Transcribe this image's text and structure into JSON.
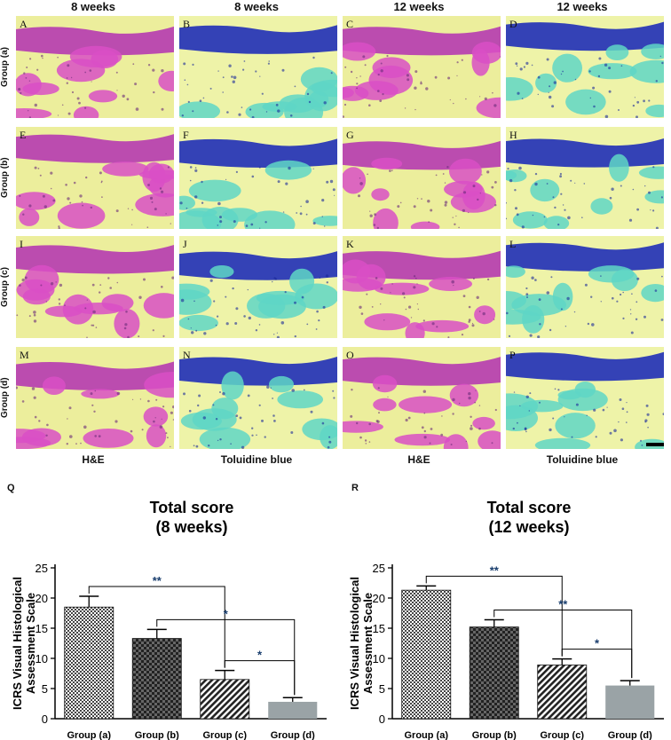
{
  "column_headers": [
    "8 weeks",
    "8 weeks",
    "12 weeks",
    "12 weeks"
  ],
  "row_labels": [
    "Group (a)",
    "Group (b)",
    "Group (c)",
    "Group (d)"
  ],
  "panel_letters": [
    "A",
    "B",
    "C",
    "D",
    "E",
    "F",
    "G",
    "H",
    "I",
    "J",
    "K",
    "L",
    "M",
    "N",
    "O",
    "P"
  ],
  "stain_labels": [
    "H&E",
    "Toluidine blue",
    "H&E",
    "Toluidine blue"
  ],
  "colors": {
    "he_bg": "#ecee9c",
    "he_tissue": "#d94fc6",
    "he_dark": "#b63ab1",
    "tb_bg": "#eef3a8",
    "tb_tissue": "#5fd6c6",
    "tb_dark": "#1f2fb7",
    "bar_a": "#d9d9d9",
    "bar_b": "#3a3a3a",
    "bar_c": "#3a3a3a",
    "bar_d": "#9aa3a6"
  },
  "chart_data": [
    {
      "type": "bar",
      "panel": "Q",
      "title": "Total score",
      "subtitle": "(8 weeks)",
      "ylabel": "ICRS Visual Histological Assessment Scale",
      "ylim": [
        0,
        25
      ],
      "yticks": [
        0,
        5,
        10,
        15,
        20,
        25
      ],
      "categories": [
        "Group (a)",
        "Group (b)",
        "Group (c)",
        "Group (d)"
      ],
      "values": [
        18.5,
        13.3,
        6.5,
        2.8
      ],
      "errors": [
        1.8,
        1.5,
        1.5,
        0.7
      ],
      "significance": [
        {
          "from": 0,
          "to": 2,
          "label": "**"
        },
        {
          "from": 1,
          "to": 3,
          "label": "*"
        },
        {
          "from": 2,
          "to": 3,
          "label": "*"
        }
      ]
    },
    {
      "type": "bar",
      "panel": "R",
      "title": "Total score",
      "subtitle": "(12 weeks)",
      "ylabel": "ICRS Visual Histological Assessment Scale",
      "ylim": [
        0,
        25
      ],
      "yticks": [
        0,
        5,
        10,
        15,
        20,
        25
      ],
      "categories": [
        "Group (a)",
        "Group (b)",
        "Group (c)",
        "Group (d)"
      ],
      "values": [
        21.3,
        15.2,
        8.9,
        5.5
      ],
      "errors": [
        0.7,
        1.2,
        1.0,
        0.8
      ],
      "significance": [
        {
          "from": 0,
          "to": 2,
          "label": "**"
        },
        {
          "from": 1,
          "to": 3,
          "label": "**"
        },
        {
          "from": 2,
          "to": 3,
          "label": "*"
        }
      ]
    }
  ]
}
